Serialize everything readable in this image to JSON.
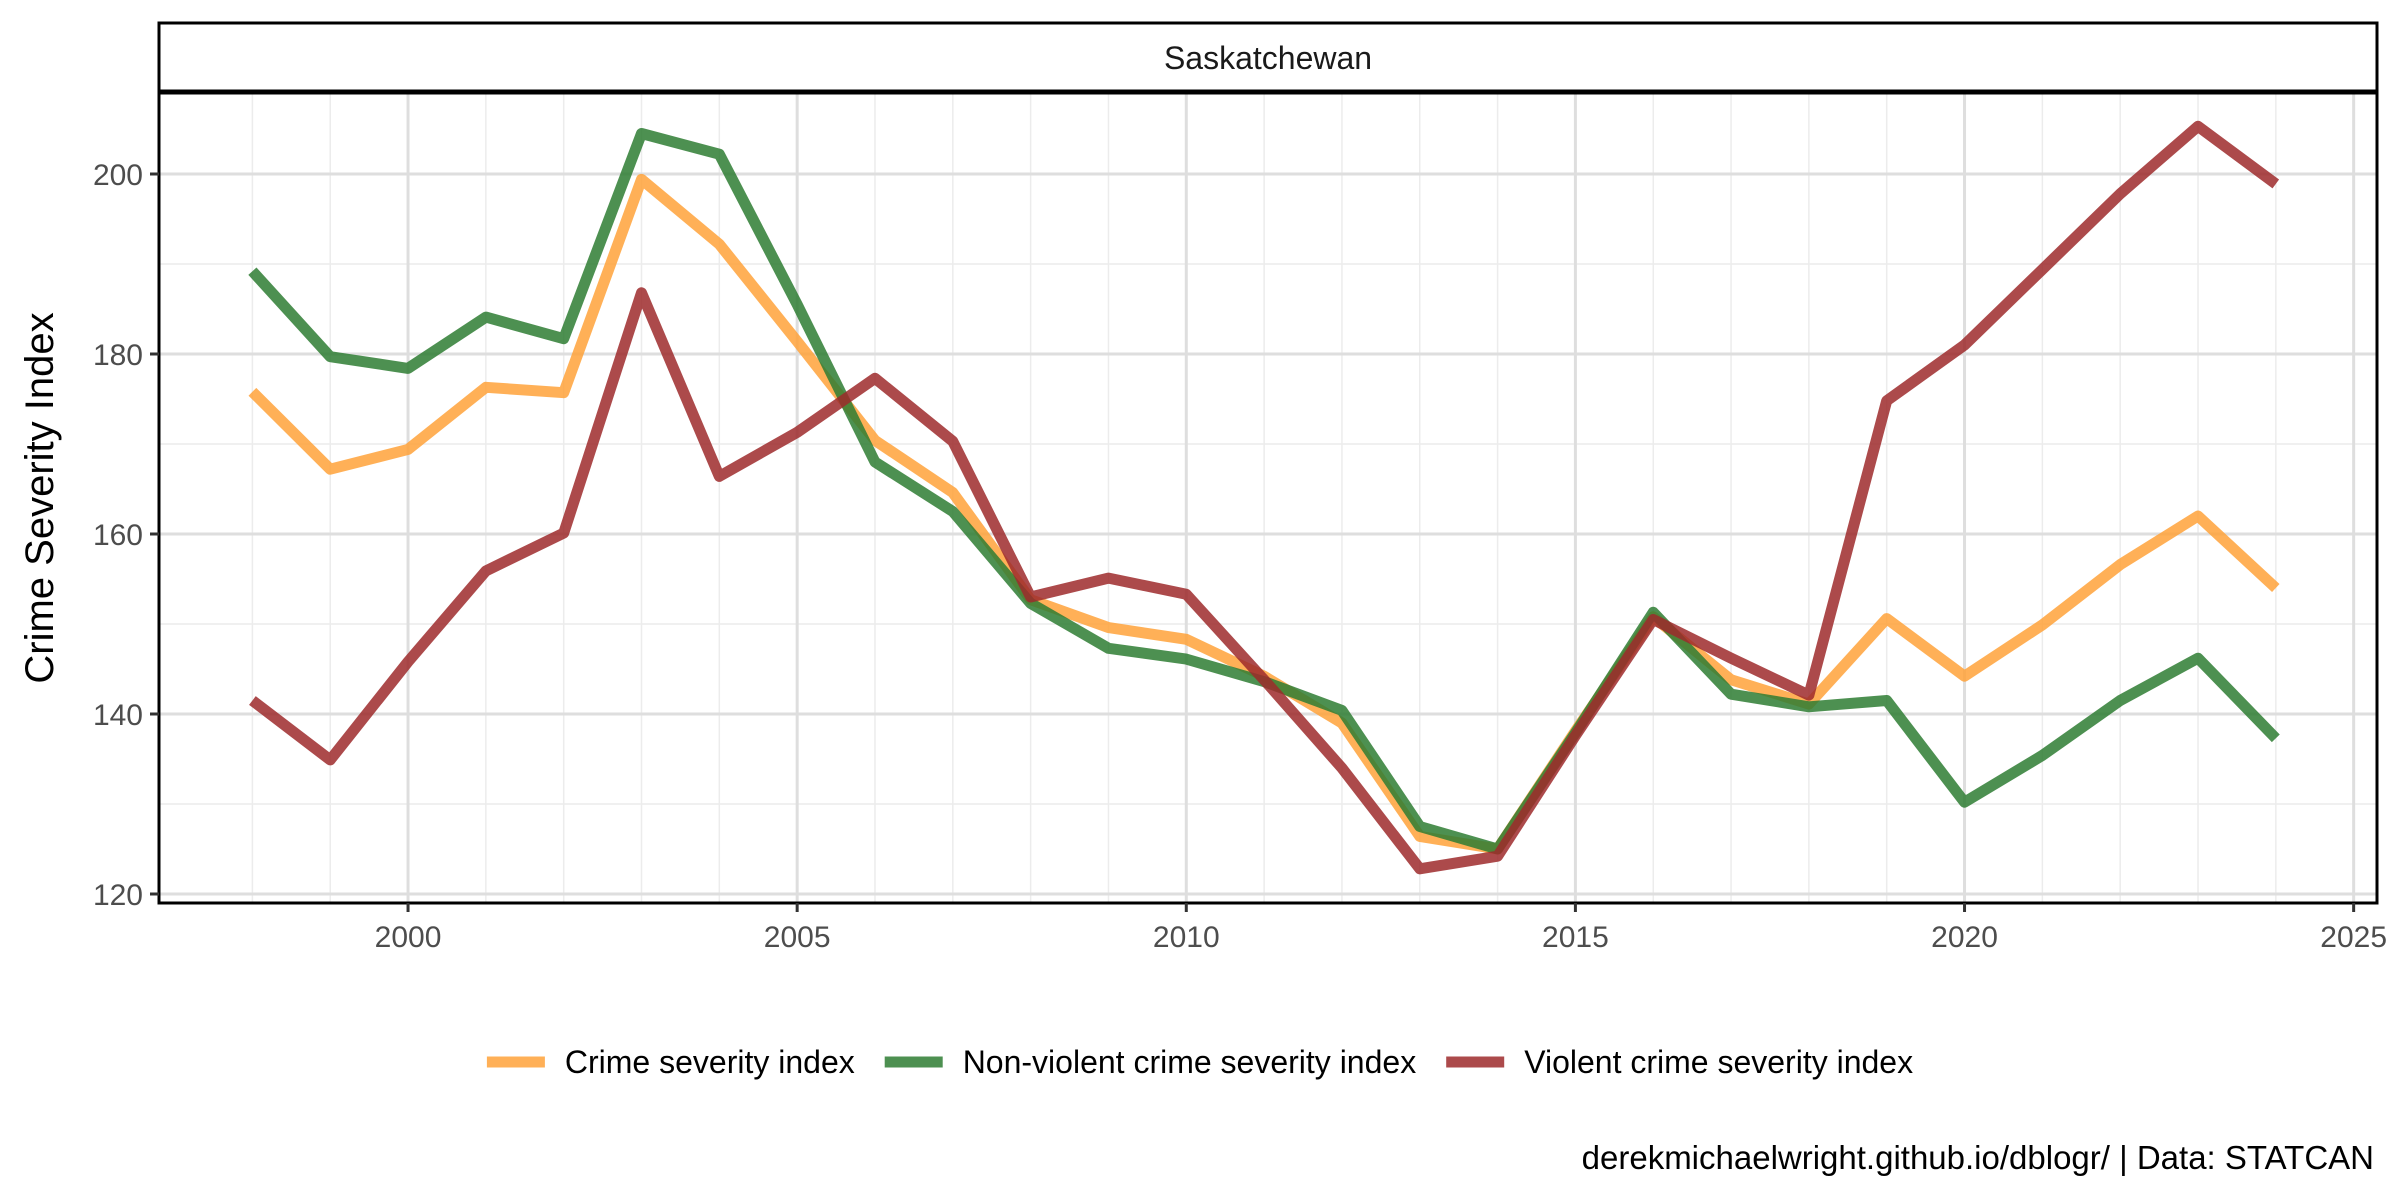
{
  "chart_data": {
    "type": "line",
    "facet": "Saskatchewan",
    "xlabel": "",
    "ylabel": "Crime Severity Index",
    "xlim": [
      1996.8,
      2025.3
    ],
    "ylim": [
      119.0,
      209.0
    ],
    "x_ticks": [
      2000,
      2005,
      2010,
      2015,
      2020,
      2025
    ],
    "y_ticks": [
      120,
      140,
      160,
      180,
      200
    ],
    "grid": true,
    "legend_position": "bottom",
    "caption": "derekmichaelwright.github.io/dblogr/ | Data: STATCAN",
    "x": [
      1998,
      1999,
      2000,
      2001,
      2002,
      2003,
      2004,
      2005,
      2006,
      2007,
      2008,
      2009,
      2010,
      2011,
      2012,
      2013,
      2014,
      2015,
      2016,
      2017,
      2018,
      2019,
      2020,
      2021,
      2022,
      2023,
      2024
    ],
    "series": [
      {
        "name": "Crime severity index",
        "color": "#FFA23A",
        "values": [
          175.8,
          167.2,
          169.4,
          176.3,
          175.7,
          199.4,
          192.2,
          181.4,
          170.4,
          164.6,
          152.7,
          149.6,
          148.3,
          144.2,
          139.0,
          126.4,
          125.0,
          138.1,
          150.8,
          143.8,
          141.1,
          150.6,
          144.2,
          149.9,
          156.6,
          162.0,
          154.0
        ]
      },
      {
        "name": "Non-violent crime severity index",
        "color": "#2E7D32",
        "values": [
          189.2,
          179.7,
          178.4,
          184.1,
          181.7,
          204.5,
          202.2,
          185.5,
          168.0,
          162.5,
          152.3,
          147.3,
          146.1,
          143.6,
          140.4,
          127.5,
          125.0,
          137.9,
          151.3,
          142.2,
          140.8,
          141.5,
          130.2,
          135.4,
          141.5,
          146.2,
          137.3
        ]
      },
      {
        "name": "Violent crime severity index",
        "color": "#9E2A2B",
        "values": [
          141.5,
          134.9,
          145.8,
          155.9,
          160.1,
          186.8,
          166.4,
          171.3,
          177.3,
          170.3,
          153.0,
          155.1,
          153.3,
          143.8,
          134.0,
          122.8,
          124.2,
          137.6,
          150.5,
          146.2,
          142.1,
          174.8,
          181.0,
          189.4,
          197.8,
          205.3,
          198.9
        ]
      }
    ]
  }
}
